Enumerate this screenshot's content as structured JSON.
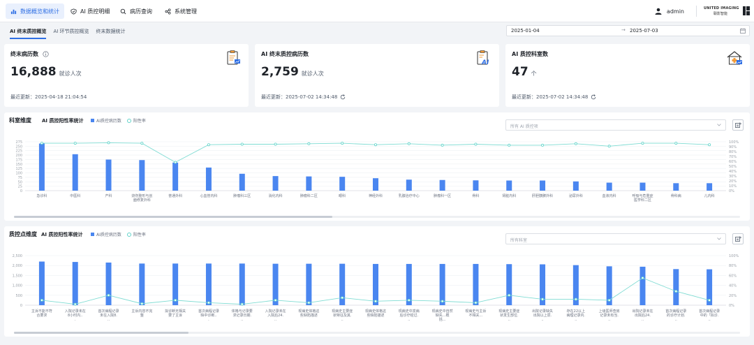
{
  "nav": {
    "items": [
      {
        "label": "数据概览和统计",
        "active": true,
        "icon": "bar-chart-icon"
      },
      {
        "label": "AI 质控明细",
        "active": false,
        "icon": "shield-check-icon"
      },
      {
        "label": "病历查询",
        "active": false,
        "icon": "search-icon"
      },
      {
        "label": "系统管理",
        "active": false,
        "icon": "settings-nodes-icon"
      }
    ],
    "user": "admin",
    "brand_top": "UNITED IMAGING",
    "brand_bottom": "联影智能"
  },
  "subtabs": [
    {
      "label": "AI 终末质控概览",
      "active": true
    },
    {
      "label": "AI 环节质控概览",
      "active": false
    },
    {
      "label": "终末数据统计",
      "active": false
    }
  ],
  "date_range": {
    "start": "2025-01-04",
    "end": "2025-07-03",
    "separator": "→"
  },
  "cards": [
    {
      "title": "终末病历数",
      "value": "16,888",
      "unit": "就诊人次",
      "update": "最近更新：2025-04-18 21:04:54",
      "has_info": true,
      "has_refresh": false
    },
    {
      "title": "AI 终末质控病历数",
      "value": "2,759",
      "unit": "就诊人次",
      "update": "最近更新：2025-07-02 14:34:48",
      "has_info": false,
      "has_refresh": true
    },
    {
      "title": "AI 质控科室数",
      "value": "47",
      "unit": "个",
      "update": "最近更新：2025-07-02 14:34:48",
      "has_info": false,
      "has_refresh": true
    }
  ],
  "panel1": {
    "title": "科室维度",
    "subtitle": "AI 质控阳性率统计",
    "legend_bar": "AI质控病历数",
    "legend_line": "阳性率",
    "select_placeholder": "所有 AI 质控项"
  },
  "panel2": {
    "title": "质控点维度",
    "subtitle": "AI 质控阳性率统计",
    "legend_bar": "AI质控病历数",
    "legend_line": "阳性率",
    "select_placeholder": "所有科室"
  },
  "chart_data": [
    {
      "type": "bar",
      "categories": [
        "急诊科",
        "中医科",
        "产科",
        "烧伤整形与创面修复外科",
        "普通外科",
        "心血管内科",
        "肿瘤科三区",
        "消化内科",
        "肿瘤科二区",
        "眼科",
        "神经外科",
        "乳腺治疗中心",
        "肿瘤科一区",
        "骨科",
        "肾脏内科",
        "肝胆胰脾外科",
        "泌尿外科",
        "血液内科",
        "呼吸与危重症医学科二区",
        "骨科病",
        "儿内科"
      ],
      "series": [
        {
          "name": "AI质控病历数",
          "axis": "left",
          "values": [
            265,
            205,
            175,
            172,
            158,
            130,
            95,
            82,
            80,
            78,
            70,
            62,
            60,
            58,
            57,
            57,
            52,
            45,
            45,
            42,
            42
          ]
        },
        {
          "name": "阳性率",
          "axis": "right",
          "unit": "%",
          "values": [
            97,
            97,
            98,
            97,
            58,
            94,
            95,
            95,
            96,
            97,
            94,
            96,
            93,
            95,
            93,
            93,
            96,
            91,
            97,
            97,
            94
          ]
        }
      ],
      "y_left_ticks": [
        "0",
        "25",
        "50",
        "75",
        "100",
        "125",
        "150",
        "175",
        "200",
        "225",
        "250",
        "275"
      ],
      "y_right_ticks": [
        "0%",
        "10%",
        "20%",
        "30%",
        "40%",
        "50%",
        "60%",
        "70%",
        "80%",
        "90%",
        "100%"
      ],
      "ylim_left": [
        0,
        275
      ],
      "ylim_right": [
        0,
        100
      ],
      "xlabel": "",
      "ylabel": "",
      "grid": true,
      "legend": "top-left"
    },
    {
      "type": "bar",
      "categories": [
        "主诉不能不符合要求",
        "入院记录未在8小时内...",
        "首次病程记录未在入院8...",
        "主诉内容不完整",
        "拟诊断无相关要了主诉",
        "首次病程记录缺中诊断...",
        "体格与记录要求记录日期...",
        "入院记录未在入院后24...",
        "现病史体格这些缺陷描述",
        "现病史主要症状特征及其...",
        "现病史体格这些缺陷描述",
        "现病史中发病后诊疗经过...",
        "现病史中自然缺失...概括...",
        "现病史与主诉不相关...",
        "现病史主要症状发生部位...",
        "出院记录缺失出院以上原...",
        "存在22以上病理记录内...",
        "上级医师查房记录未有当...",
        "出院记录未在出院后24...",
        "首次病程记录的诊疗计划...",
        "首次病程记录中的「拟诊..."
      ],
      "series": [
        {
          "name": "AI质控病历数",
          "axis": "left",
          "values": [
            2200,
            2180,
            2150,
            2100,
            2100,
            2100,
            2100,
            2090,
            2090,
            2090,
            2080,
            2080,
            2080,
            2080,
            2070,
            2060,
            2020,
            1960,
            1940,
            1820,
            1810
          ]
        },
        {
          "name": "阳性率",
          "axis": "right",
          "unit": "%",
          "values": [
            10,
            2,
            20,
            3,
            10,
            5,
            2,
            10,
            5,
            15,
            8,
            10,
            8,
            5,
            20,
            12,
            12,
            10,
            55,
            28,
            10
          ]
        }
      ],
      "y_left_ticks": [
        "0",
        "500",
        "1,000",
        "1,500",
        "2,000",
        "2,500"
      ],
      "y_right_ticks": [
        "0%",
        "20%",
        "40%",
        "60%",
        "80%",
        "100%"
      ],
      "ylim_left": [
        0,
        2500
      ],
      "ylim_right": [
        0,
        100
      ],
      "xlabel": "",
      "ylabel": "",
      "grid": true,
      "legend": "top-left"
    }
  ]
}
